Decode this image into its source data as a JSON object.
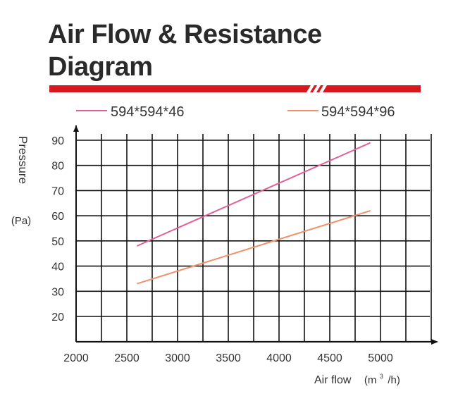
{
  "title_lines": [
    "Air Flow & Resistance",
    "Diagram"
  ],
  "colors": {
    "accent_bar": "#d7191f",
    "series_1": "#e0609a",
    "series_2": "#f0916a",
    "grid": "#111111"
  },
  "chart_data": {
    "type": "line",
    "title": "Air Flow & Resistance Diagram",
    "xlabel_main": "Air flow",
    "xlabel_unit_pre": "(m",
    "xlabel_unit_sup": "3",
    "xlabel_unit_post": "/h)",
    "ylabel_main": "Pressure",
    "ylabel_unit": "(Pa)",
    "xlim": [
      2000,
      5500
    ],
    "ylim": [
      10,
      95
    ],
    "x_ticks": [
      2000,
      2500,
      3000,
      3500,
      4000,
      4500,
      5000
    ],
    "y_ticks": [
      20,
      30,
      40,
      50,
      60,
      70,
      80,
      90
    ],
    "grid": true,
    "legend_position": "top",
    "series": [
      {
        "name": "594*594*46",
        "x": [
          2600,
          4900
        ],
        "y": [
          48,
          89
        ]
      },
      {
        "name": "594*594*96",
        "x": [
          2600,
          4900
        ],
        "y": [
          33,
          62
        ]
      }
    ]
  }
}
